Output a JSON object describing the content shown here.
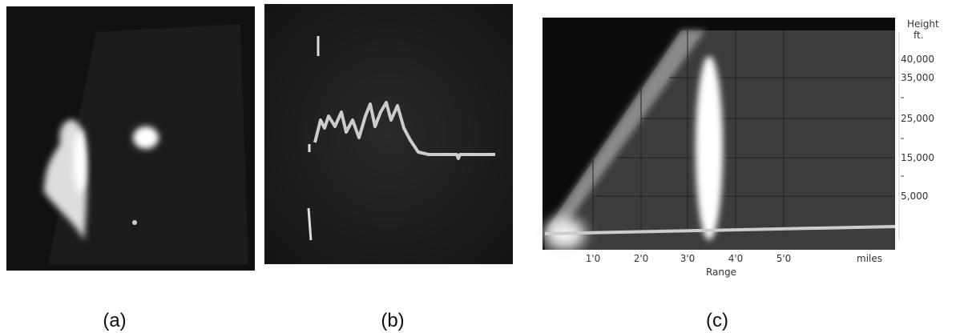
{
  "panels": [
    {
      "caption": "(a)"
    },
    {
      "caption": "(b)"
    },
    {
      "caption": "(c)",
      "y_axis": {
        "title": [
          "Height",
          "ft."
        ],
        "tick_labels": [
          "40,000",
          "35,000",
          "25,000",
          "15,000",
          "5,000"
        ]
      },
      "x_axis": {
        "title": "Range",
        "tick_labels": [
          "1'0",
          "2'0",
          "3'0",
          "4'0",
          "5'0",
          "miles"
        ]
      }
    }
  ]
}
